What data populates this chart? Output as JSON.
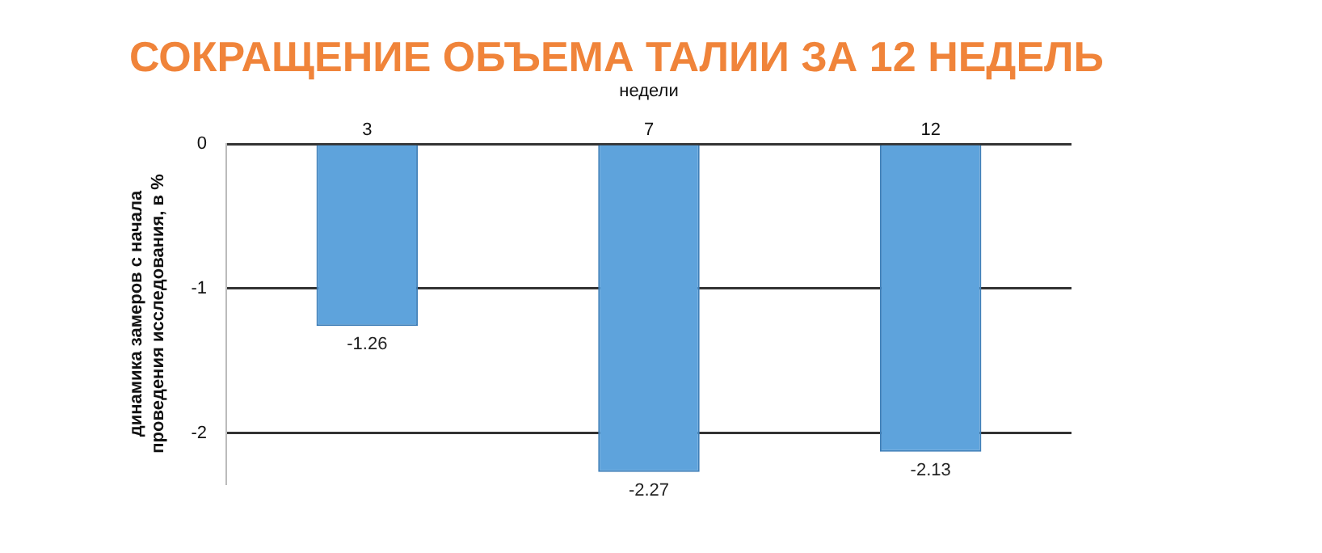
{
  "chart_data": {
    "type": "bar",
    "title": "СОКРАЩЕНИЕ ОБЪЕМА ТАЛИИ ЗА 12 НЕДЕЛЬ",
    "xlabel": "недели",
    "ylabel": "динамика замеров с начала проведения исследования, в %",
    "categories": [
      "3",
      "7",
      "12"
    ],
    "series": [
      {
        "color": "#5ea3dc",
        "values": [
          -1.26,
          -2.27,
          -2.13
        ]
      }
    ],
    "ylim": [
      -2.35,
      0
    ],
    "yticks": [
      -2,
      -1,
      0
    ],
    "grid": "y",
    "legend": false,
    "data_labels": true
  }
}
